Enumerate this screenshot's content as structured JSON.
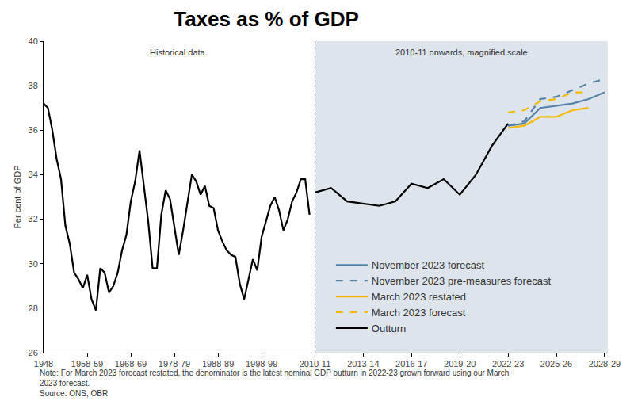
{
  "chart_data": [
    {
      "type": "line",
      "title": "Taxes as % of GDP",
      "y_label": "Per cent of GDP",
      "annotations": [
        "Historical data"
      ],
      "x": [
        1948,
        1949,
        1950,
        1951,
        1952,
        1953,
        1954,
        1955,
        1956,
        1957,
        1958,
        1959,
        1960,
        1961,
        1962,
        1963,
        1964,
        1965,
        1966,
        1967,
        1968,
        1969,
        1970,
        1971,
        1972,
        1973,
        1974,
        1975,
        1976,
        1977,
        1978,
        1979,
        1980,
        1981,
        1982,
        1983,
        1984,
        1985,
        1986,
        1987,
        1988,
        1989,
        1990,
        1991,
        1992,
        1993,
        1994,
        1995,
        1996,
        1997,
        1998,
        1999,
        2000,
        2001,
        2002,
        2003,
        2004,
        2005,
        2006,
        2007,
        2008,
        2009
      ],
      "series": [
        {
          "name": "Outturn",
          "color": "#000000",
          "line_style": "solid",
          "values": [
            37.2,
            37.0,
            36.0,
            34.7,
            33.8,
            31.7,
            30.9,
            29.6,
            29.3,
            28.9,
            29.5,
            28.4,
            27.9,
            29.8,
            29.6,
            28.7,
            29.0,
            29.6,
            30.6,
            31.3,
            32.8,
            33.7,
            35.1,
            33.4,
            31.9,
            29.8,
            29.8,
            32.2,
            33.3,
            32.9,
            31.6,
            30.4,
            31.5,
            32.8,
            34.0,
            33.7,
            33.1,
            33.5,
            32.6,
            32.5,
            31.5,
            31.0,
            30.6,
            30.4,
            30.3,
            29.1,
            28.4,
            29.3,
            30.2,
            29.7,
            31.2,
            31.9,
            32.6,
            33.0,
            32.4,
            31.5,
            32.0,
            32.8,
            33.2,
            33.8,
            33.8,
            32.2
          ]
        }
      ],
      "xlim": [
        1948,
        2009.6
      ],
      "xticks": [
        1948,
        {
          "value": 1958,
          "label": "1958-59"
        },
        {
          "value": 1968,
          "label": "1968-69"
        },
        {
          "value": 1978,
          "label": "1978-79"
        },
        {
          "value": 1988,
          "label": "1988-89"
        },
        {
          "value": 1998,
          "label": "1998-99"
        }
      ],
      "ylim": [
        26,
        40
      ],
      "yticks": [
        26,
        28,
        30,
        32,
        34,
        36,
        38,
        40
      ],
      "grid": false
    },
    {
      "type": "line",
      "annotations": [
        "2010-11 onwards, magnified scale"
      ],
      "x": [
        2010,
        2011,
        2012,
        2013,
        2014,
        2015,
        2016,
        2017,
        2018,
        2019,
        2020,
        2021,
        2022,
        2023,
        2024,
        2025,
        2026,
        2027,
        2028
      ],
      "series": [
        {
          "name": "November 2023 forecast",
          "color": "#5683a8",
          "line_style": "solid",
          "values": [
            null,
            null,
            null,
            null,
            null,
            null,
            null,
            null,
            null,
            null,
            null,
            null,
            36.2,
            36.3,
            37.0,
            37.1,
            37.2,
            37.4,
            37.7
          ]
        },
        {
          "name": "November 2023 pre-measures forecast",
          "color": "#5683a8",
          "line_style": "dashed",
          "values": [
            null,
            null,
            null,
            null,
            null,
            null,
            null,
            null,
            null,
            null,
            null,
            null,
            36.2,
            36.4,
            37.4,
            37.5,
            37.8,
            38.1,
            38.3
          ]
        },
        {
          "name": "March 2023 restated",
          "color": "#f6b900",
          "line_style": "solid",
          "values": [
            null,
            null,
            null,
            null,
            null,
            null,
            null,
            null,
            null,
            null,
            null,
            null,
            36.1,
            36.2,
            36.6,
            36.6,
            36.9,
            37.0,
            null
          ]
        },
        {
          "name": "March 2023 forecast",
          "color": "#f6b900",
          "line_style": "dashed",
          "values": [
            null,
            null,
            null,
            null,
            null,
            null,
            null,
            null,
            null,
            null,
            null,
            null,
            36.8,
            36.9,
            37.3,
            37.4,
            37.7,
            37.7,
            null
          ]
        },
        {
          "name": "Outturn",
          "color": "#000000",
          "line_style": "solid",
          "values": [
            33.2,
            33.4,
            32.8,
            32.7,
            32.6,
            32.8,
            33.6,
            33.4,
            33.8,
            33.1,
            34.0,
            35.3,
            36.3,
            null,
            null,
            null,
            null,
            null,
            null
          ]
        }
      ],
      "xlim": [
        2010,
        2028.2
      ],
      "xticks": [
        {
          "value": 2010,
          "label": "2010-11"
        },
        {
          "value": 2013,
          "label": "2013-14"
        },
        {
          "value": 2016,
          "label": "2016-17"
        },
        {
          "value": 2019,
          "label": "2019-20"
        },
        {
          "value": 2022,
          "label": "2022-23"
        },
        {
          "value": 2025,
          "label": "2025-26"
        },
        {
          "value": 2028,
          "label": "2028-29"
        }
      ],
      "ylim": [
        26,
        40
      ],
      "yticks": [
        26,
        28,
        30,
        32,
        34,
        36,
        38,
        40
      ],
      "tick_labels": "x",
      "legend": "lower left",
      "grid": false
    }
  ],
  "note": [
    "Note: For March 2023 forecast restated, the denominator is the latest nominal GDP outturn in 2022-23 grown forward using our March",
    "2023 forecast."
  ],
  "source": "Source: ONS, OBR"
}
